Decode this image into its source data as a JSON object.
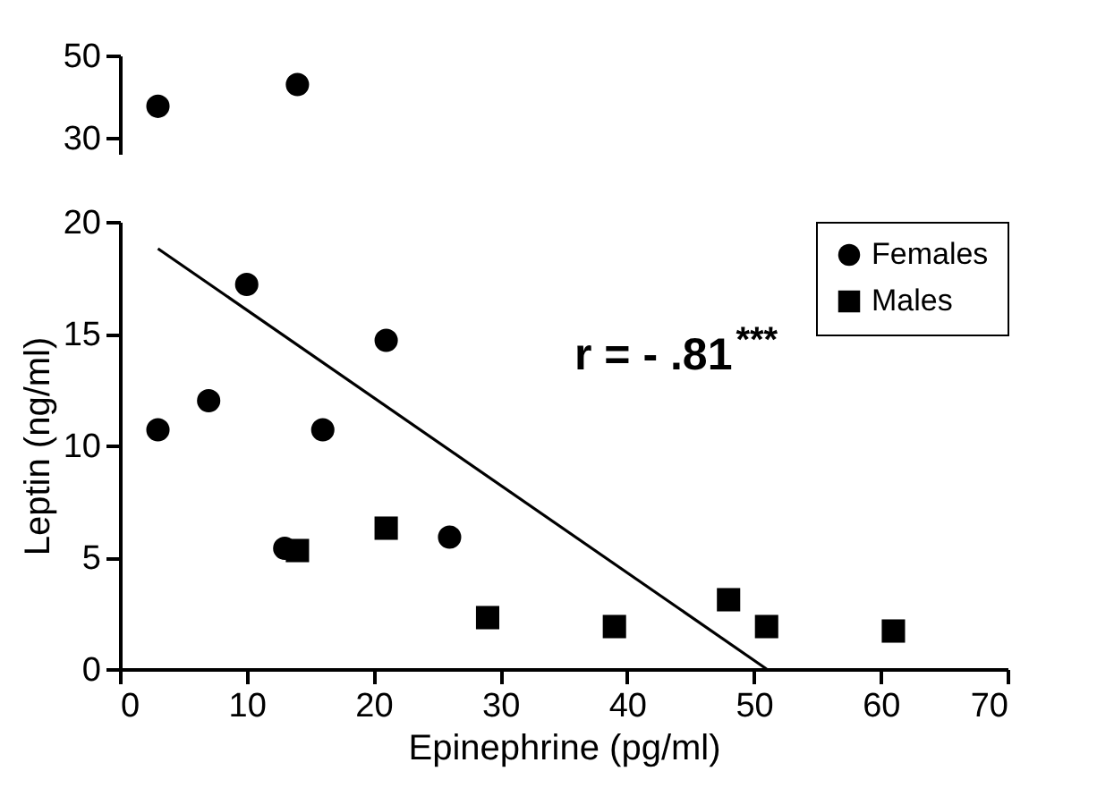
{
  "chart_data": [
    {
      "type": "scatter",
      "xlim": [
        0,
        70
      ],
      "ylim": [
        26,
        50
      ],
      "yticks": [
        30,
        50
      ],
      "tick_labels": "y",
      "grid": false,
      "legend": false,
      "series": [
        {
          "color": "#000000",
          "marker": "circle",
          "x": [
            3,
            14
          ],
          "values": [
            37.6,
            42.9
          ]
        }
      ]
    },
    {
      "type": "scatter",
      "xlim": [
        0,
        70
      ],
      "ylim": [
        0,
        20
      ],
      "xticks": [
        0,
        10,
        20,
        30,
        40,
        50,
        60,
        70
      ],
      "yticks": [
        0,
        5,
        10,
        15,
        20
      ],
      "xlabel": "Epinephrine (pg/ml)",
      "ylabel": "Leptin (ng/ml)",
      "grid": false,
      "legend": "top right",
      "annotations": [
        "r = - .81$^{***}$"
      ],
      "series": [
        {
          "name": "Females",
          "color": "#000000",
          "marker": "circle",
          "x": [
            3,
            7,
            10,
            13,
            16,
            21,
            26
          ],
          "values": [
            10.7,
            12,
            17.2,
            5.4,
            10.7,
            14.7,
            5.9
          ]
        },
        {
          "name": "Males",
          "color": "#000000",
          "marker": "square",
          "x": [
            14,
            21,
            29,
            39,
            48,
            51,
            61
          ],
          "values": [
            5.3,
            6.3,
            2.3,
            1.9,
            3.1,
            1.9,
            1.7
          ]
        },
        {
          "type": "line",
          "color": "#000000",
          "x": [
            3,
            51
          ],
          "values": [
            18.8,
            0
          ]
        }
      ]
    }
  ]
}
